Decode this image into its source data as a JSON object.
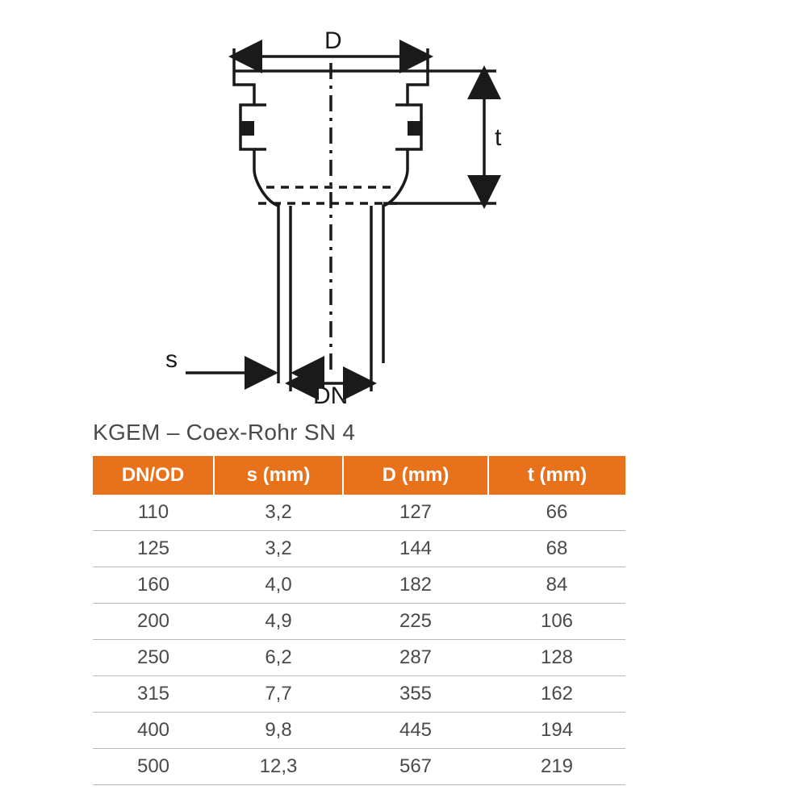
{
  "diagram": {
    "labels": {
      "D": "D",
      "t": "t",
      "s": "s",
      "DN": "DN"
    },
    "stroke_color": "#1a1a1a",
    "stroke_width": 3.5,
    "text_fontsize": 30,
    "text_color": "#1a1a1a",
    "arrow_size": 12
  },
  "table": {
    "title": "KGEM – Coex-Rohr SN 4",
    "title_fontsize": 28,
    "title_color": "#4a4a4a",
    "header_bg": "#e8721c",
    "header_fg": "#ffffff",
    "header_fontsize": 24,
    "cell_fontsize": 24,
    "cell_color": "#4a4a4a",
    "row_border_color": "#b8b8b8",
    "columns": [
      "DN/OD",
      "s (mm)",
      "D (mm)",
      "t (mm)"
    ],
    "rows": [
      [
        "110",
        "3,2",
        "127",
        "66"
      ],
      [
        "125",
        "3,2",
        "144",
        "68"
      ],
      [
        "160",
        "4,0",
        "182",
        "84"
      ],
      [
        "200",
        "4,9",
        "225",
        "106"
      ],
      [
        "250",
        "6,2",
        "287",
        "128"
      ],
      [
        "315",
        "7,7",
        "355",
        "162"
      ],
      [
        "400",
        "9,8",
        "445",
        "194"
      ],
      [
        "500",
        "12,3",
        "567",
        "219"
      ]
    ]
  }
}
